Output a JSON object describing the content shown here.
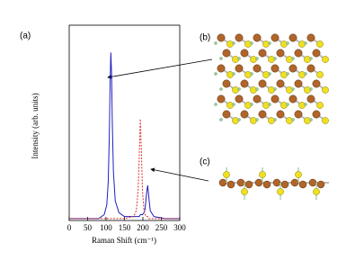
{
  "chart_data": {
    "type": "line",
    "panel_labels": [
      "(a)",
      "(b)",
      "(c)"
    ],
    "x_label": "Raman Shift (cm⁻¹)",
    "y_label": "Intensity (arb. units)",
    "x": [
      0,
      50,
      80,
      95,
      102,
      106,
      109,
      111,
      113,
      115,
      117,
      120,
      125,
      135,
      150,
      175,
      182,
      187,
      190,
      193,
      196,
      199,
      203,
      206,
      210,
      213,
      216,
      220,
      230,
      260,
      300
    ],
    "series": [
      {
        "color": "#1f1fbf",
        "dashed": false,
        "values": [
          0.01,
          0.01,
          0.01,
          0.03,
          0.08,
          0.2,
          0.45,
          0.7,
          0.86,
          0.75,
          0.5,
          0.25,
          0.1,
          0.04,
          0.02,
          0.02,
          0.02,
          0.02,
          0.02,
          0.03,
          0.03,
          0.03,
          0.04,
          0.06,
          0.14,
          0.18,
          0.12,
          0.05,
          0.02,
          0.01,
          0.01
        ]
      },
      {
        "color": "#e03030",
        "dashed": true,
        "values": [
          0.01,
          0.01,
          0.01,
          0.01,
          0.01,
          0.01,
          0.01,
          0.01,
          0.01,
          0.01,
          0.01,
          0.01,
          0.01,
          0.01,
          0.01,
          0.02,
          0.05,
          0.15,
          0.32,
          0.52,
          0.35,
          0.15,
          0.05,
          0.03,
          0.02,
          0.02,
          0.01,
          0.01,
          0.01,
          0.01,
          0.01
        ]
      }
    ],
    "xlim": [
      0,
      300
    ],
    "xticks": [
      0,
      50,
      100,
      150,
      200,
      250,
      300
    ],
    "ylim": [
      0,
      1
    ]
  }
}
